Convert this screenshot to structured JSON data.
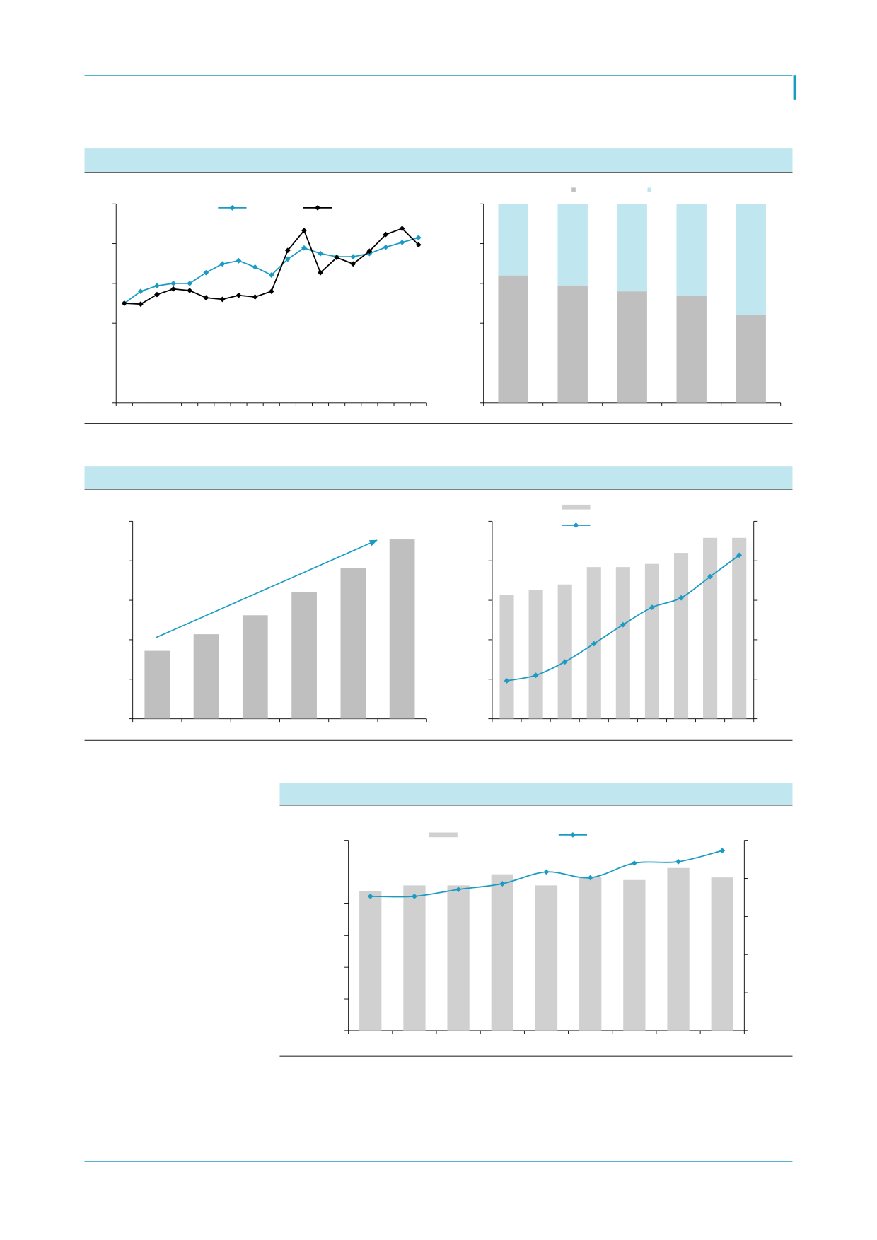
{
  "chart_data": [
    {
      "type": "line",
      "categories": [
        null,
        null,
        null,
        null,
        null,
        null,
        null,
        null,
        null,
        null,
        null,
        null,
        null,
        null,
        null,
        null,
        null,
        null,
        null
      ],
      "series": [
        {
          "color": "#1a9bc4",
          "values": [
            2.5,
            2.8,
            2.94,
            3.0,
            3.0,
            3.27,
            3.49,
            3.57,
            3.41,
            3.21,
            3.61,
            3.89,
            3.75,
            3.67,
            3.67,
            3.75,
            3.91,
            4.03,
            4.15
          ]
        },
        {
          "color": "#000000",
          "values": [
            2.5,
            2.48,
            2.72,
            2.86,
            2.82,
            2.64,
            2.6,
            2.7,
            2.66,
            2.8,
            3.83,
            4.33,
            3.27,
            3.65,
            3.49,
            3.81,
            4.23,
            4.38,
            3.97
          ]
        }
      ],
      "ylim": [
        0,
        5
      ],
      "yticks": [
        0,
        1,
        2,
        3,
        4,
        5
      ]
    },
    {
      "type": "stacked",
      "categories": [
        null,
        null,
        null,
        null,
        null
      ],
      "series": [
        {
          "color": "#bfbfbf",
          "values": [
            64,
            59,
            56,
            54,
            44
          ]
        },
        {
          "color": "#c0e6f0",
          "values": [
            36,
            41,
            44,
            46,
            56
          ]
        }
      ],
      "ylim": [
        0,
        100
      ],
      "yticks": [
        0,
        20,
        40,
        60,
        80,
        100
      ]
    },
    {
      "type": "bar",
      "categories": [
        null,
        null,
        null,
        null,
        null,
        null
      ],
      "series": [
        {
          "color": "#bfbfbf",
          "values": [
            1.72,
            2.14,
            2.62,
            3.2,
            3.82,
            4.54
          ]
        }
      ],
      "ylim": [
        0,
        5
      ],
      "yticks": [
        0,
        1,
        2,
        3,
        4,
        5
      ]
    },
    {
      "type": "combo",
      "categories": [
        null,
        null,
        null,
        null,
        null,
        null,
        null,
        null,
        null
      ],
      "series": [
        {
          "color": "#d0d0d0",
          "values": [
            3.14,
            3.26,
            3.4,
            3.84,
            3.84,
            3.92,
            4.2,
            4.58,
            4.58
          ]
        },
        {
          "color": "#1a9bc4",
          "axis": "y2",
          "values": [
            0.96,
            1.1,
            1.44,
            1.9,
            2.38,
            2.82,
            3.06,
            3.6,
            4.14
          ]
        }
      ],
      "ylim": [
        0,
        5
      ],
      "yticks": [
        0,
        1,
        2,
        3,
        4,
        5
      ],
      "y2lim": [
        0,
        5
      ],
      "y2ticks": [
        0,
        1,
        2,
        3,
        4,
        5
      ]
    },
    {
      "type": "combo",
      "categories": [
        null,
        null,
        null,
        null,
        null,
        null,
        null,
        null,
        null
      ],
      "series": [
        {
          "color": "#d0d0d0",
          "values": [
            4.41,
            4.58,
            4.58,
            4.93,
            4.58,
            4.85,
            4.75,
            5.13,
            4.83
          ]
        },
        {
          "color": "#1a9bc4",
          "axis": "y2",
          "values": [
            3.53,
            3.53,
            3.71,
            3.86,
            4.17,
            4.02,
            4.4,
            4.44,
            4.73
          ]
        }
      ],
      "ylim": [
        0,
        6
      ],
      "yticks": [
        0,
        1,
        2,
        3,
        4,
        5,
        6
      ],
      "y2lim": [
        0,
        5
      ],
      "y2ticks": [
        0,
        1,
        2,
        3,
        4,
        5
      ]
    }
  ]
}
